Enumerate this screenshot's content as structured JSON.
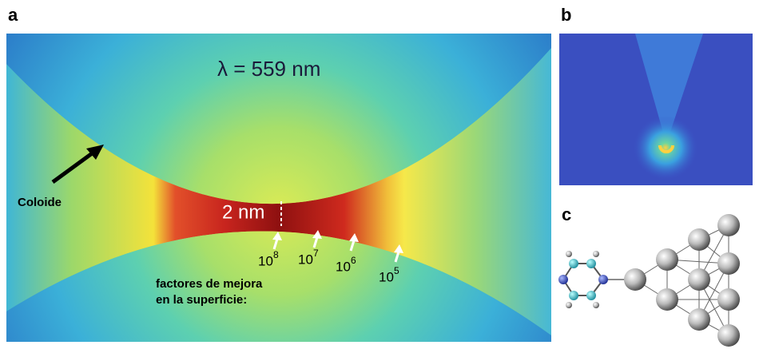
{
  "panels": {
    "a": {
      "label": "a",
      "wavelength": "λ = 559 nm",
      "colloid": "Coloide",
      "gap": "2 nm",
      "enhancement": [
        {
          "base": "10",
          "exp": "8"
        },
        {
          "base": "10",
          "exp": "7"
        },
        {
          "base": "10",
          "exp": "6"
        },
        {
          "base": "10",
          "exp": "5"
        }
      ],
      "caption": [
        "factores de mejora",
        "en la superficie:"
      ]
    },
    "b": {
      "label": "b"
    },
    "c": {
      "label": "c"
    }
  }
}
